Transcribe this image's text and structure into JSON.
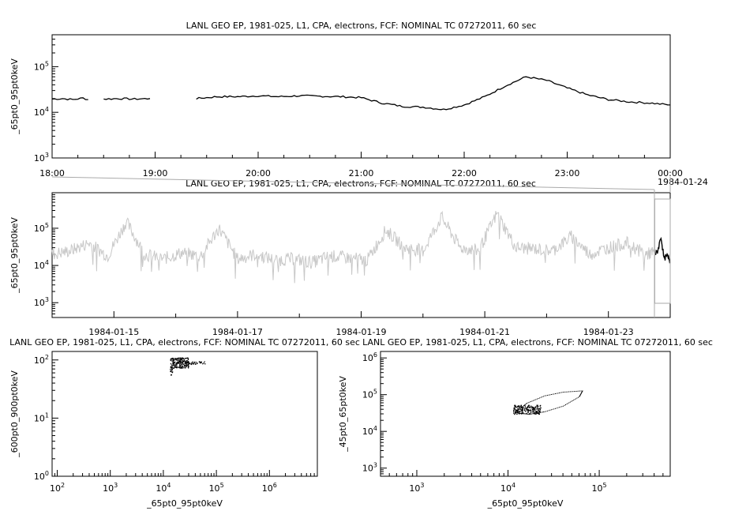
{
  "chart_data": [
    {
      "id": "top",
      "type": "line",
      "title": "LANL GEO EP, 1981-025, L1, CPA, electrons, FCF: NOMINAL TC 07272011, 60 sec",
      "ylabel": "_65pt0_95pt0keV",
      "xlabel": "",
      "yscale": "log",
      "xlim": [
        "1984-01-23 18:00",
        "1984-01-24 00:00"
      ],
      "ylim": [
        1000,
        500000
      ],
      "x_ticks": [
        "18:00",
        "19:00",
        "20:00",
        "21:00",
        "22:00",
        "23:00",
        "00:00"
      ],
      "x_tick_extra": "1984-01-24",
      "y_ticks": [
        {
          "base": "10",
          "exp": "3"
        },
        {
          "base": "10",
          "exp": "4"
        },
        {
          "base": "10",
          "exp": "5"
        }
      ],
      "series_color": "#000000",
      "series": [
        {
          "values_x_hours": [
            18.0,
            18.1,
            18.2,
            18.3,
            18.35
          ],
          "values": [
            19500,
            20000,
            19000,
            20500,
            19000
          ]
        },
        {
          "values_x_hours": [
            18.5,
            18.65,
            18.8,
            18.95
          ],
          "values": [
            19500,
            20000,
            19500,
            20000
          ]
        },
        {
          "values_x_hours": [
            19.4,
            19.6,
            19.8,
            20.0,
            20.2,
            20.4,
            20.6,
            20.8,
            21.0,
            21.2,
            21.4,
            21.6,
            21.8,
            22.0,
            22.2,
            22.4,
            22.6,
            22.8,
            23.0,
            23.2,
            23.4,
            23.6,
            23.8,
            24.0
          ],
          "values": [
            20000,
            22000,
            22000,
            23000,
            22000,
            23000,
            22500,
            22000,
            21000,
            16000,
            13500,
            13000,
            11500,
            14500,
            22000,
            38000,
            60000,
            50000,
            34000,
            24000,
            19000,
            17000,
            16000,
            14500
          ]
        }
      ]
    },
    {
      "id": "middle",
      "type": "line",
      "title": "LANL GEO EP, 1981-025, L1, CPA, electrons, FCF: NOMINAL TC 07272011, 60 sec",
      "ylabel": "_65pt0_95pt0keV",
      "xlabel": "",
      "yscale": "log",
      "xlim": [
        "1984-01-14",
        "1984-01-24"
      ],
      "ylim": [
        400,
        900000
      ],
      "x_ticks": [
        "1984-01-15",
        "1984-01-17",
        "1984-01-19",
        "1984-01-21",
        "1984-01-23"
      ],
      "y_ticks": [
        {
          "base": "10",
          "exp": "3"
        },
        {
          "base": "10",
          "exp": "4"
        },
        {
          "base": "10",
          "exp": "5"
        }
      ],
      "series_colors": [
        "#c8c8c8",
        "#000000"
      ],
      "series": [
        {
          "values_x_days": [
            0.0,
            0.3,
            0.6,
            0.9,
            1.2,
            1.5,
            1.8,
            2.1,
            2.4,
            2.7,
            3.0,
            3.3,
            3.6,
            3.9,
            4.2,
            4.5,
            4.8,
            5.1,
            5.4,
            5.7,
            6.0,
            6.3,
            6.6,
            6.9,
            7.2,
            7.5,
            7.8,
            8.1,
            8.4,
            8.7,
            9.0,
            9.3,
            9.6,
            9.75
          ],
          "values": [
            20000,
            25000,
            40000,
            18000,
            150000,
            20000,
            15000,
            22000,
            18000,
            100000,
            15000,
            20000,
            14000,
            15000,
            12000,
            18000,
            16000,
            14000,
            90000,
            30000,
            25000,
            200000,
            30000,
            25000,
            250000,
            30000,
            28000,
            25000,
            60000,
            20000,
            30000,
            40000,
            20000,
            22000
          ]
        },
        {
          "values_x_days": [
            9.76,
            9.8,
            9.85,
            9.9,
            9.95,
            10.0
          ],
          "values": [
            20000,
            25000,
            60000,
            15000,
            18000,
            13000
          ]
        }
      ]
    },
    {
      "id": "bottom-left",
      "type": "scatter",
      "title": "LANL GEO EP, 1981-025, L1, CPA, electrons, FCF: NOMINAL TC 07272011, 60 sec",
      "xlabel": "_65pt0_95pt0keV",
      "ylabel": "_600pt0_900pt0keV",
      "xscale": "log",
      "yscale": "log",
      "xlim": [
        80,
        8000000
      ],
      "ylim": [
        1,
        140
      ],
      "x_ticks": [
        {
          "base": "10",
          "exp": "2"
        },
        {
          "base": "10",
          "exp": "3"
        },
        {
          "base": "10",
          "exp": "4"
        },
        {
          "base": "10",
          "exp": "5"
        },
        {
          "base": "10",
          "exp": "6"
        }
      ],
      "y_ticks": [
        {
          "base": "10",
          "exp": "0"
        },
        {
          "base": "10",
          "exp": "1"
        },
        {
          "base": "10",
          "exp": "2"
        }
      ],
      "cluster": {
        "x_range": [
          12000,
          60000
        ],
        "y_range": [
          60,
          110
        ],
        "center": [
          20000,
          90
        ]
      }
    },
    {
      "id": "bottom-right",
      "type": "scatter",
      "title": "LANL GEO EP, 1981-025, L1, CPA, electrons, FCF: NOMINAL TC 07272011, 60 sec",
      "xlabel": "_65pt0_95pt0keV",
      "ylabel": "_45pt0_65pt0keV",
      "xscale": "log",
      "yscale": "log",
      "xlim": [
        400,
        600000
      ],
      "ylim": [
        600,
        1500000
      ],
      "x_ticks": [
        {
          "base": "10",
          "exp": "3"
        },
        {
          "base": "10",
          "exp": "4"
        },
        {
          "base": "10",
          "exp": "5"
        }
      ],
      "y_ticks": [
        {
          "base": "10",
          "exp": "3"
        },
        {
          "base": "10",
          "exp": "4"
        },
        {
          "base": "10",
          "exp": "5"
        },
        {
          "base": "10",
          "exp": "6"
        }
      ],
      "loop": {
        "x": [
          12000,
          16000,
          25000,
          40000,
          65000,
          60000,
          40000,
          25000,
          17000,
          13000,
          12000
        ],
        "y": [
          35000,
          60000,
          95000,
          120000,
          130000,
          90000,
          50000,
          35000,
          30000,
          32000,
          35000
        ]
      },
      "cluster": {
        "x_range": [
          11000,
          22000
        ],
        "y_range": [
          30000,
          55000
        ],
        "center": [
          16000,
          40000
        ]
      }
    }
  ]
}
